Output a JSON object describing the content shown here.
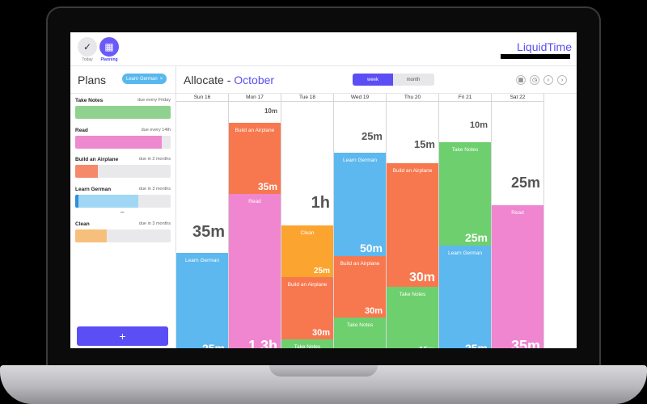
{
  "nav": {
    "today_label": "Today",
    "planning_label": "Planning"
  },
  "brand": "LiquidTime",
  "sidebar": {
    "title": "Plans",
    "filter_chip": "Learn German",
    "chip_close": "×",
    "plans": [
      {
        "name": "Take Notes",
        "due": "due every Friday",
        "color": "#8fd18f",
        "progress": 1.0
      },
      {
        "name": "Read",
        "due": "due every 14th",
        "color": "#ee88cf",
        "progress": 0.91
      },
      {
        "name": "Build an Airplane",
        "due": "due in 2 months",
        "color": "#f58a6a",
        "progress": 0.24
      },
      {
        "name": "Learn German",
        "due": "due in 3 months",
        "color": "#9fd7f4",
        "progress": 0.66,
        "note": "–"
      },
      {
        "name": "Clean",
        "due": "due in 3 months",
        "color": "#f6c07c",
        "progress": 0.33
      }
    ],
    "add_label": "+"
  },
  "calendar": {
    "title_prefix": "Allocate - ",
    "title_month": "October",
    "toggle_week": "week",
    "toggle_month": "month",
    "icons": [
      "calendar-icon",
      "clock-icon",
      "chevron-left-icon",
      "chevron-right-icon"
    ],
    "days": [
      {
        "label": "Sun 16"
      },
      {
        "label": "Mon 17"
      },
      {
        "label": "Tue 18"
      },
      {
        "label": "Wed 19"
      },
      {
        "label": "Thu 20"
      },
      {
        "label": "Fri 21"
      },
      {
        "label": "Sat 22"
      }
    ]
  }
}
